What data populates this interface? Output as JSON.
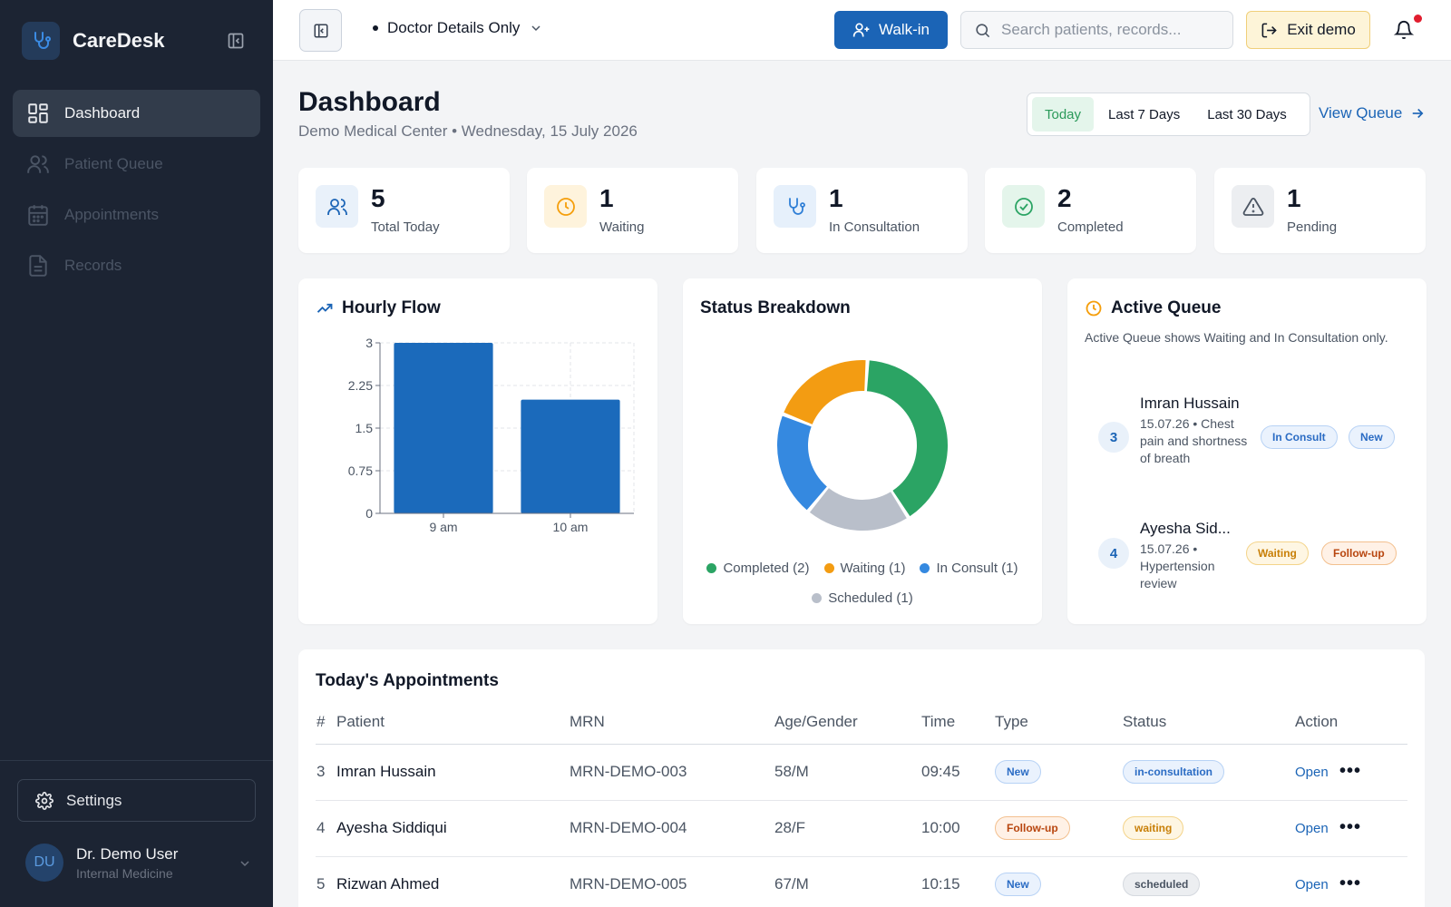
{
  "app": {
    "name": "CareDesk"
  },
  "sidebar": {
    "items": [
      {
        "label": "Dashboard",
        "icon": "grid-icon",
        "active": true
      },
      {
        "label": "Patient Queue",
        "icon": "users-icon",
        "active": false
      },
      {
        "label": "Appointments",
        "icon": "calendar-icon",
        "active": false
      },
      {
        "label": "Records",
        "icon": "document-icon",
        "active": false
      }
    ],
    "settings_label": "Settings",
    "user": {
      "initials": "DU",
      "name": "Dr. Demo User",
      "role": "Internal Medicine"
    }
  },
  "topbar": {
    "view_select": "Doctor Details Only",
    "walkin_label": "Walk-in",
    "search_placeholder": "Search patients, records...",
    "exit_demo_label": "Exit demo"
  },
  "header": {
    "title": "Dashboard",
    "subtitle": "Demo Medical Center • Wednesday, 15 July 2026",
    "ranges": [
      "Today",
      "Last 7 Days",
      "Last 30 Days"
    ],
    "active_range": "Today",
    "view_queue_label": "View Queue"
  },
  "stats": [
    {
      "value": "5",
      "label": "Total Today",
      "icon": "users-icon",
      "color": "#1b64b6",
      "bg": "#e9f1fa"
    },
    {
      "value": "1",
      "label": "Waiting",
      "icon": "clock-icon",
      "color": "#f59e0b",
      "bg": "#fef3dc"
    },
    {
      "value": "1",
      "label": "In Consultation",
      "icon": "stethoscope-icon",
      "color": "#2f7fd6",
      "bg": "#e6f0fb"
    },
    {
      "value": "2",
      "label": "Completed",
      "icon": "check-circle-icon",
      "color": "#2ba464",
      "bg": "#e4f5eb"
    },
    {
      "value": "1",
      "label": "Pending",
      "icon": "warning-icon",
      "color": "#4b5563",
      "bg": "#eceef1"
    }
  ],
  "hourly_flow": {
    "title": "Hourly Flow"
  },
  "status_breakdown": {
    "title": "Status Breakdown"
  },
  "chart_data": [
    {
      "type": "bar",
      "title": "Hourly Flow",
      "categories": [
        "9 am",
        "10 am"
      ],
      "values": [
        3,
        2
      ],
      "ylim": [
        0,
        3
      ],
      "yticks": [
        "0",
        "0.75",
        "1.5",
        "2.25",
        "3"
      ],
      "grid": true,
      "color": "#1b6abb"
    },
    {
      "type": "pie",
      "title": "Status Breakdown",
      "labels": [
        "Completed",
        "Scheduled",
        "In Consult",
        "Waiting"
      ],
      "values": [
        2,
        1,
        1,
        1
      ],
      "colors": [
        "#2ba464",
        "#b9bfca",
        "#3589e0",
        "#f39c12"
      ],
      "legend": [
        "Completed (2)",
        "Waiting (1)",
        "In Consult (1)",
        "Scheduled (1)"
      ],
      "legend_colors": [
        "#2ba464",
        "#f39c12",
        "#3589e0",
        "#b9bfca"
      ],
      "legend_position": "bottom"
    }
  ],
  "active_queue": {
    "title": "Active Queue",
    "note": "Active Queue shows Waiting and In Consultation only.",
    "items": [
      {
        "num": "3",
        "name": "Imran Hussain",
        "detail": "15.07.26 • Chest pain and shortness of breath",
        "status": "In Consult",
        "type": "New"
      },
      {
        "num": "4",
        "name": "Ayesha Sid...",
        "detail": "15.07.26 • Hypertension review",
        "status": "Waiting",
        "type": "Follow-up"
      }
    ]
  },
  "appointments": {
    "title": "Today's Appointments",
    "columns": [
      "#",
      "Patient",
      "MRN",
      "Age/Gender",
      "Time",
      "Type",
      "Status",
      "Action"
    ],
    "rows": [
      {
        "num": "3",
        "patient": "Imran Hussain",
        "mrn": "MRN-DEMO-003",
        "age_gender": "58/M",
        "time": "09:45",
        "type": "New",
        "status": "in-consultation",
        "action": "Open"
      },
      {
        "num": "4",
        "patient": "Ayesha Siddiqui",
        "mrn": "MRN-DEMO-004",
        "age_gender": "28/F",
        "time": "10:00",
        "type": "Follow-up",
        "status": "waiting",
        "action": "Open"
      },
      {
        "num": "5",
        "patient": "Rizwan Ahmed",
        "mrn": "MRN-DEMO-005",
        "age_gender": "67/M",
        "time": "10:15",
        "type": "New",
        "status": "scheduled",
        "action": "Open"
      }
    ]
  }
}
